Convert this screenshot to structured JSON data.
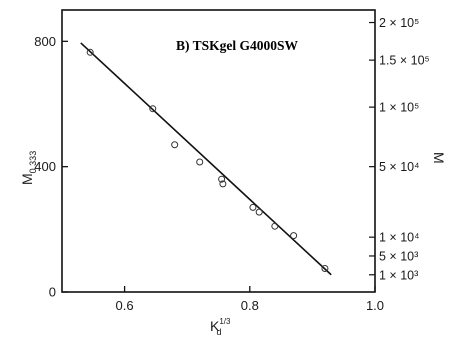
{
  "chart_data": {
    "type": "scatter",
    "title": "B) TSKgel G4000SW",
    "xlabel": "K",
    "xlabel_sub": "d",
    "xlabel_sup": "1/3",
    "ylabel": "M",
    "ylabel_sub": "0.333",
    "y2label": "M",
    "xlim": [
      0.5,
      1.0
    ],
    "ylim": [
      0,
      900
    ],
    "x_ticks": [
      0.6,
      0.8,
      1.0
    ],
    "x_tick_labels": [
      "0.6",
      "0.8",
      "1.0"
    ],
    "y_ticks": [
      0,
      400,
      800
    ],
    "y_tick_labels": [
      "0",
      "400",
      "800"
    ],
    "y2_ticks": [
      {
        "label": "2 × 10⁵",
        "value": 860
      },
      {
        "label": "1.5 × 10⁵",
        "value": 740
      },
      {
        "label": "1 × 10⁵",
        "value": 590
      },
      {
        "label": "5 × 10⁴",
        "value": 400
      },
      {
        "label": "1 × 10⁴",
        "value": 175
      },
      {
        "label": "5 × 10³",
        "value": 115
      },
      {
        "label": "1 × 10³",
        "value": 55
      }
    ],
    "series": [
      {
        "points": [
          {
            "x": 0.545,
            "y": 765
          },
          {
            "x": 0.645,
            "y": 585
          },
          {
            "x": 0.68,
            "y": 470
          },
          {
            "x": 0.72,
            "y": 415
          },
          {
            "x": 0.755,
            "y": 360
          },
          {
            "x": 0.757,
            "y": 345
          },
          {
            "x": 0.805,
            "y": 270
          },
          {
            "x": 0.815,
            "y": 255
          },
          {
            "x": 0.84,
            "y": 210
          },
          {
            "x": 0.87,
            "y": 180
          },
          {
            "x": 0.92,
            "y": 75
          }
        ],
        "fit_line": [
          {
            "x": 0.53,
            "y": 795
          },
          {
            "x": 0.93,
            "y": 55
          }
        ]
      }
    ],
    "grid": false,
    "legend": "none"
  }
}
